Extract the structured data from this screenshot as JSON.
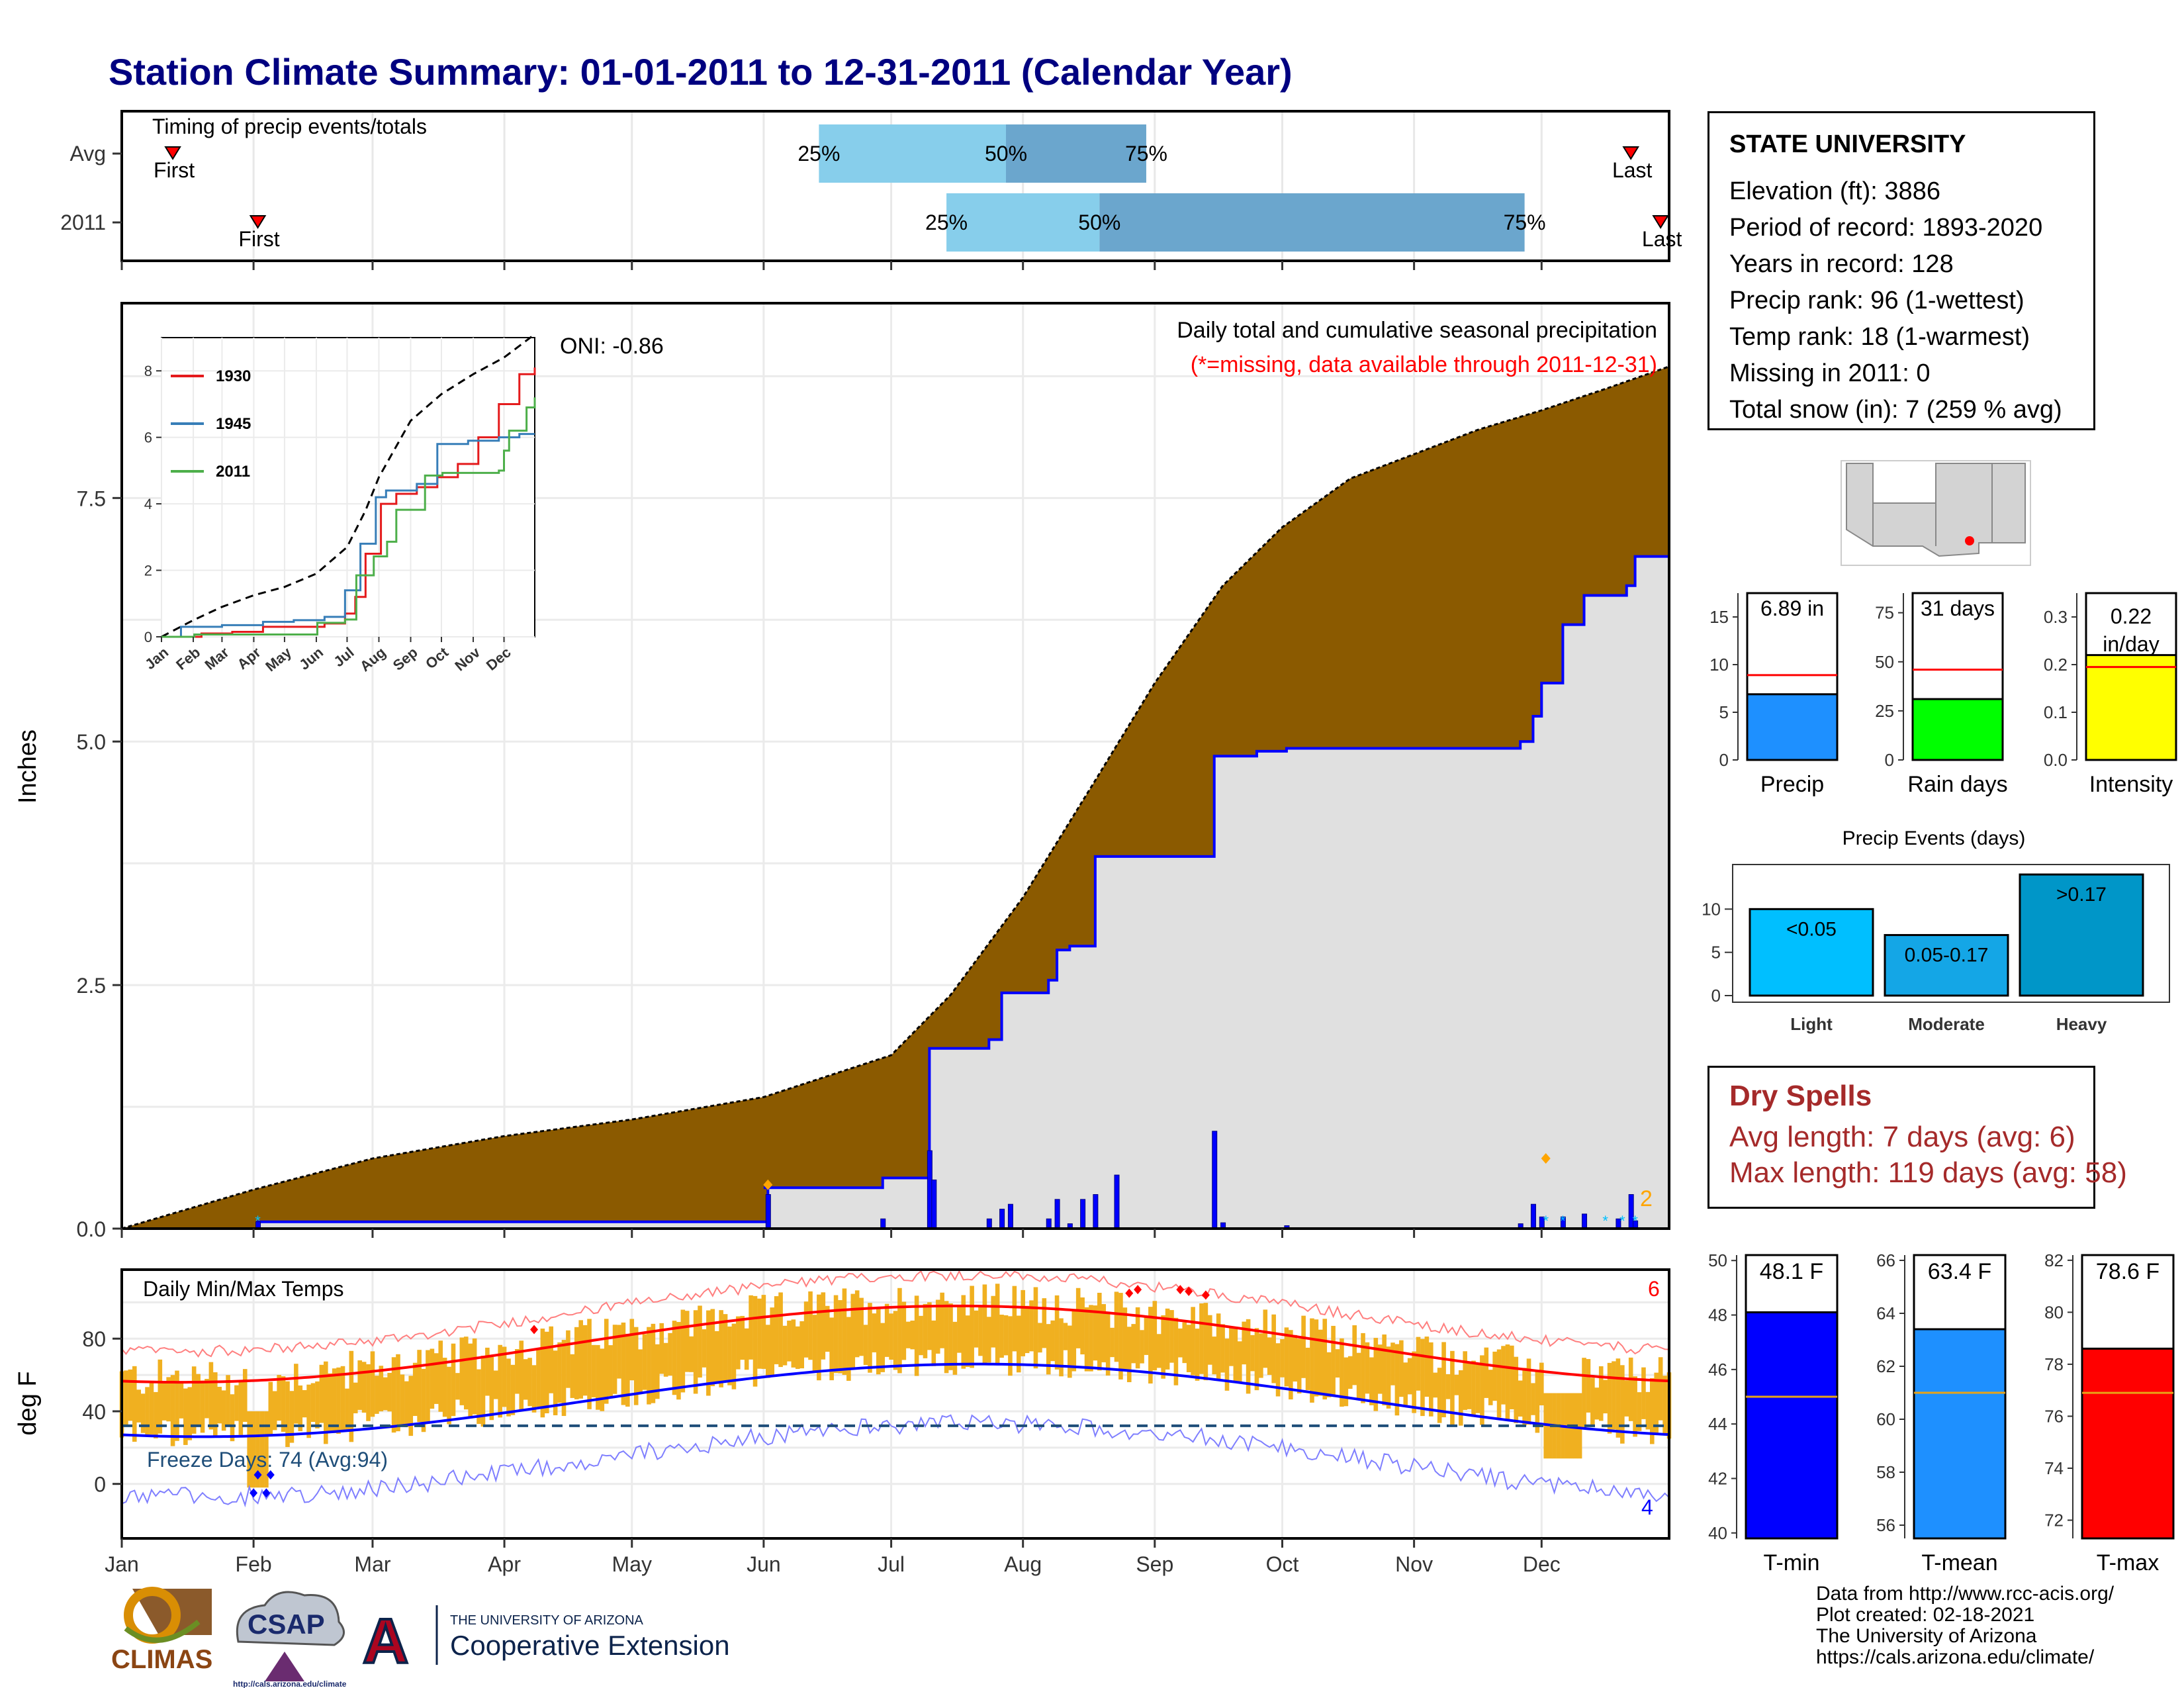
{
  "title": "Station Climate Summary: 01-01-2011 to 12-31-2011 (Calendar Year)",
  "colors": {
    "title": "#000080",
    "cumulative_avg": "#8B5A00",
    "cumulative_2011": "#0000FF",
    "panel_fill": "#E0E0E0",
    "quartile_light": "#87CEEB",
    "quartile_dark": "#6BA6CD",
    "temp_bar": "#F0B020",
    "avg_max": "#FF0000",
    "avg_min": "#0000FF",
    "freeze_line": "#1F4E79",
    "dry_spells": "#A52A2A"
  },
  "timing": {
    "title": "Timing of precip events/totals",
    "rows": [
      "Avg",
      "2011"
    ],
    "first_label": "First",
    "last_label": "Last",
    "avg": {
      "first": "Jan 13",
      "last": "Dec 22",
      "q25": "Jun 14",
      "q50": "Jul 28",
      "q75": "Aug 30"
    },
    "y2011": {
      "first": "Feb 2",
      "last": "Dec 29",
      "q25": "Jul 14",
      "q50": "Aug 19",
      "q75": "Nov 27"
    },
    "q25_label": "25%",
    "q50_label": "50%",
    "q75_label": "75%"
  },
  "precip_panel": {
    "y_axis_label": "Inches",
    "y_ticks": [
      "0.0",
      "2.5",
      "5.0",
      "7.5"
    ],
    "title": "Daily total and cumulative seasonal precipitation",
    "missing_note": "(*=missing, data available through 2011-12-31)",
    "oni": "ONI: -0.86",
    "corner_count": "2"
  },
  "inset": {
    "y_ticks": [
      "0",
      "2",
      "4",
      "6",
      "8"
    ],
    "x_ticks": [
      "Jan",
      "Feb",
      "Mar",
      "Apr",
      "May",
      "Jun",
      "Jul",
      "Aug",
      "Sep",
      "Oct",
      "Nov",
      "Dec"
    ],
    "legend": [
      {
        "name": "1930",
        "color": "#E41A1C"
      },
      {
        "name": "1945",
        "color": "#377EB8"
      },
      {
        "name": "2011",
        "color": "#4DAF4A"
      }
    ]
  },
  "temp_panel": {
    "y_axis_label": "deg F",
    "y_ticks": [
      "0",
      "40",
      "80"
    ],
    "title": "Daily Min/Max Temps",
    "freeze_label": "Freeze Days: 74 (Avg:94)",
    "count_hot": "6",
    "count_cold": "4"
  },
  "months": [
    "Jan",
    "Feb",
    "Mar",
    "Apr",
    "May",
    "Jun",
    "Jul",
    "Aug",
    "Sep",
    "Oct",
    "Nov",
    "Dec"
  ],
  "station": {
    "name": "STATE UNIVERSITY",
    "lines": [
      "Elevation (ft): 3886",
      "Period of record: 1893-2020",
      "Years in record: 128",
      "Precip rank: 96 (1-wettest)",
      "Temp rank: 18 (1-warmest)",
      "Missing in 2011: 0",
      "Total snow (in): 7 (259 % avg)"
    ]
  },
  "gauges_precip": [
    {
      "label": "Precip",
      "value_label": "6.89 in",
      "value": 6.89,
      "avg": 8.9,
      "ymax": 17.5,
      "ticks": [
        "0",
        "5",
        "10",
        "15"
      ],
      "tick_vals": [
        0,
        5,
        10,
        15
      ],
      "color": "#1E90FF"
    },
    {
      "label": "Rain days",
      "value_label": "31 days",
      "value": 31,
      "avg": 46,
      "ymax": 85,
      "ticks": [
        "0",
        "25",
        "50",
        "75"
      ],
      "tick_vals": [
        0,
        25,
        50,
        75
      ],
      "color": "#00FF00"
    },
    {
      "label": "Intensity",
      "value_label": "0.22 in/day",
      "value": 0.22,
      "avg": 0.195,
      "ymax": 0.35,
      "ticks": [
        "0.0",
        "0.1",
        "0.2",
        "0.3"
      ],
      "tick_vals": [
        0,
        0.1,
        0.2,
        0.3
      ],
      "color": "#FFFF00"
    }
  ],
  "precip_events": {
    "title": "Precip Events (days)",
    "y_ticks": [
      "0",
      "5",
      "10"
    ],
    "bars": [
      {
        "category": "Light",
        "label": "<0.05",
        "value": 10,
        "color": "#00BFFF"
      },
      {
        "category": "Moderate",
        "label": "0.05-0.17",
        "value": 7,
        "color": "#14A6E6"
      },
      {
        "category": "Heavy",
        "label": ">0.17",
        "value": 14,
        "color": "#0096C8"
      }
    ]
  },
  "dry_spells": {
    "title": "Dry Spells",
    "avg_line": "Avg length: 7 days (avg: 6)",
    "max_line": "Max length: 119 days (avg: 58)"
  },
  "gauges_temp": [
    {
      "label": "T-min",
      "value_label": "48.1 F",
      "value": 48.1,
      "avg": 45.0,
      "ymin": 39.8,
      "ymax": 50.2,
      "ticks": [
        "40",
        "42",
        "44",
        "46",
        "48",
        "50"
      ],
      "tick_vals": [
        40,
        42,
        44,
        46,
        48,
        50
      ],
      "color": "#0000FF"
    },
    {
      "label": "T-mean",
      "value_label": "63.4 F",
      "value": 63.4,
      "avg": 61.0,
      "ymin": 55.5,
      "ymax": 66.2,
      "ticks": [
        "56",
        "58",
        "60",
        "62",
        "64",
        "66"
      ],
      "tick_vals": [
        56,
        58,
        60,
        62,
        64,
        66
      ],
      "color": "#1E90FF"
    },
    {
      "label": "T-max",
      "value_label": "78.6 F",
      "value": 78.6,
      "avg": 76.9,
      "ymin": 71.3,
      "ymax": 82.2,
      "ticks": [
        "72",
        "74",
        "76",
        "78",
        "80",
        "82"
      ],
      "tick_vals": [
        72,
        74,
        76,
        78,
        80,
        82
      ],
      "color": "#FF0000"
    }
  ],
  "logos": {
    "climas": "CLIMAS",
    "csap": "CSAP",
    "csap_url": "http://cals.arizona.edu/climate",
    "ua_small": "THE UNIVERSITY OF ARIZONA",
    "ua_large": "Cooperative Extension",
    "ua_letter": "A"
  },
  "credits": [
    "Data from http://www.rcc-acis.org/",
    "Plot created: 02-18-2021",
    "The University of Arizona",
    "https://cals.arizona.edu/climate/"
  ]
}
